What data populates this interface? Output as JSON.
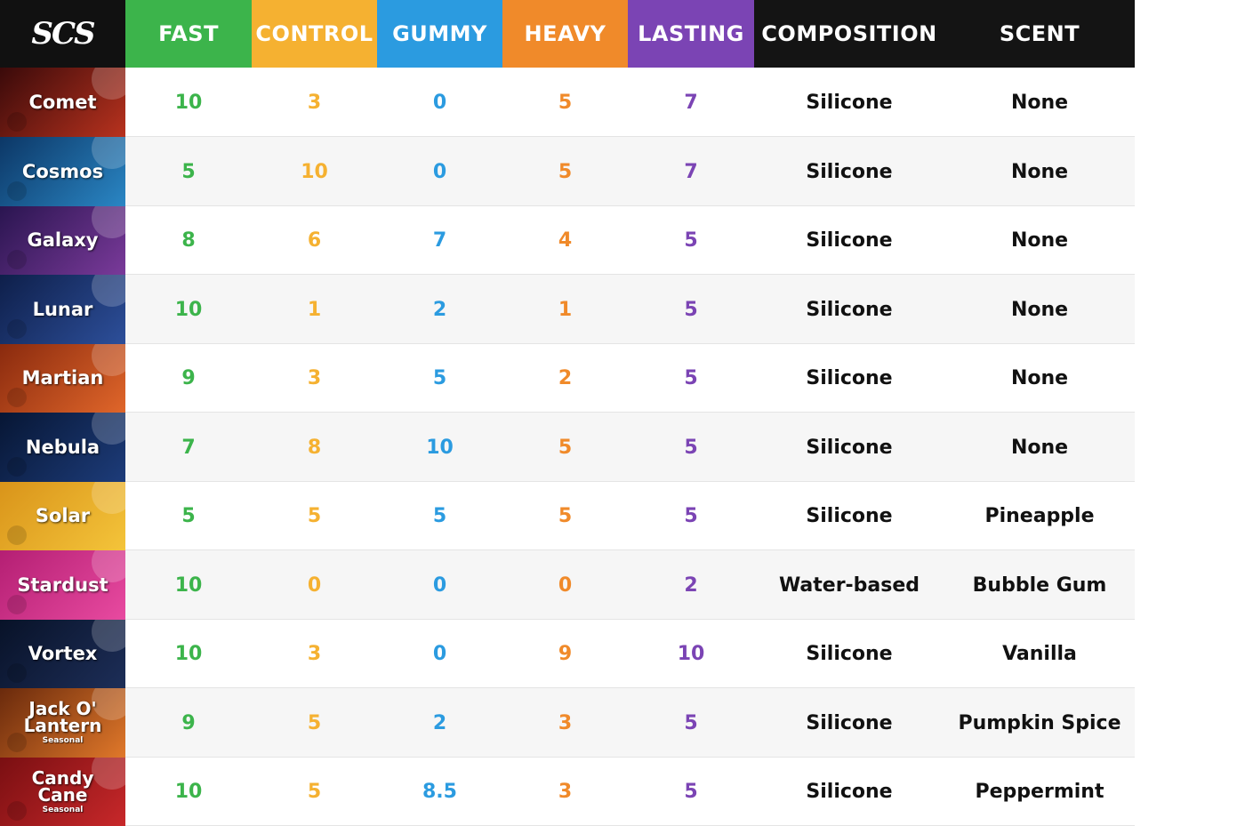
{
  "logo_text": "SCS",
  "colors": {
    "fast": "#3cb44b",
    "control": "#f5b131",
    "gummy": "#2b9be0",
    "heavy": "#f08a2a",
    "lasting": "#7b44b4",
    "dark": "#141414"
  },
  "chart_data": {
    "type": "table",
    "columns": [
      "FAST",
      "CONTROL",
      "GUMMY",
      "HEAVY",
      "LASTING",
      "COMPOSITION",
      "SCENT"
    ],
    "rows": [
      {
        "name": "Comet",
        "seasonal": "",
        "values": [
          "10",
          "3",
          "0",
          "5",
          "7"
        ],
        "composition": "Silicone",
        "scent": "None",
        "bg": [
          "#3a0a0a",
          "#b8321e"
        ]
      },
      {
        "name": "Cosmos",
        "seasonal": "",
        "values": [
          "5",
          "10",
          "0",
          "5",
          "7"
        ],
        "composition": "Silicone",
        "scent": "None",
        "bg": [
          "#0c3766",
          "#2a86c4"
        ]
      },
      {
        "name": "Galaxy",
        "seasonal": "",
        "values": [
          "8",
          "6",
          "7",
          "4",
          "5"
        ],
        "composition": "Silicone",
        "scent": "None",
        "bg": [
          "#2a1550",
          "#7a3a9a"
        ]
      },
      {
        "name": "Lunar",
        "seasonal": "",
        "values": [
          "10",
          "1",
          "2",
          "1",
          "5"
        ],
        "composition": "Silicone",
        "scent": "None",
        "bg": [
          "#0e1f4a",
          "#2d4f9a"
        ]
      },
      {
        "name": "Martian",
        "seasonal": "",
        "values": [
          "9",
          "3",
          "5",
          "2",
          "5"
        ],
        "composition": "Silicone",
        "scent": "None",
        "bg": [
          "#8a2a0e",
          "#e0662a"
        ]
      },
      {
        "name": "Nebula",
        "seasonal": "",
        "values": [
          "7",
          "8",
          "10",
          "5",
          "5"
        ],
        "composition": "Silicone",
        "scent": "None",
        "bg": [
          "#071634",
          "#1d3c7a"
        ]
      },
      {
        "name": "Solar",
        "seasonal": "",
        "values": [
          "5",
          "5",
          "5",
          "5",
          "5"
        ],
        "composition": "Silicone",
        "scent": "Pineapple",
        "bg": [
          "#d9941a",
          "#f4c43a"
        ]
      },
      {
        "name": "Stardust",
        "seasonal": "",
        "values": [
          "10",
          "0",
          "0",
          "0",
          "2"
        ],
        "composition": "Water-based",
        "scent": "Bubble Gum",
        "bg": [
          "#b41f73",
          "#e84aa0"
        ]
      },
      {
        "name": "Vortex",
        "seasonal": "",
        "values": [
          "10",
          "3",
          "0",
          "9",
          "10"
        ],
        "composition": "Silicone",
        "scent": "Vanilla",
        "bg": [
          "#081228",
          "#1d2e58"
        ]
      },
      {
        "name": "Jack O' Lantern",
        "seasonal": "Seasonal",
        "values": [
          "9",
          "5",
          "2",
          "3",
          "5"
        ],
        "composition": "Silicone",
        "scent": "Pumpkin Spice",
        "bg": [
          "#6a2a0c",
          "#e0782a"
        ]
      },
      {
        "name": "Candy Cane",
        "seasonal": "Seasonal",
        "values": [
          "10",
          "5",
          "8.5",
          "3",
          "5"
        ],
        "composition": "Silicone",
        "scent": "Peppermint",
        "bg": [
          "#7a0f12",
          "#c8282a"
        ]
      }
    ]
  }
}
